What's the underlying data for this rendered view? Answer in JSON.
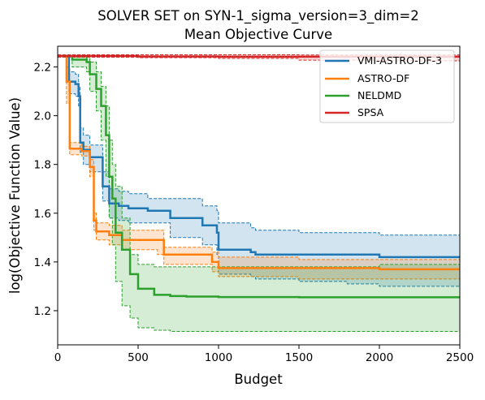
{
  "chart_data": {
    "type": "line",
    "title": "SOLVER SET on SYN-1_sigma_version=3_dim=2",
    "subtitle": "Mean Objective Curve",
    "xlabel": "Budget",
    "ylabel": "log(Objective Function Value)",
    "xlim": [
      0,
      2500
    ],
    "ylim": [
      1.06,
      2.285
    ],
    "xticks": [
      0,
      500,
      1000,
      1500,
      2000,
      2500
    ],
    "yticks": [
      1.2,
      1.4,
      1.6,
      1.8,
      2.0,
      2.2
    ],
    "xtick_labels": [
      "0",
      "500",
      "1000",
      "1500",
      "2000",
      "2500"
    ],
    "ytick_labels": [
      "1.2",
      "1.4",
      "1.6",
      "1.8",
      "2.0",
      "2.2"
    ],
    "grid": false,
    "legend_position": "upper right",
    "step_plot": true,
    "confidence_band": true,
    "series": [
      {
        "name": "VMI-ASTRO-DF-3",
        "color": "#1f77b4",
        "mean": [
          [
            0,
            2.245
          ],
          [
            40,
            2.245
          ],
          [
            70,
            2.14
          ],
          [
            110,
            2.13
          ],
          [
            130,
            2.08
          ],
          [
            140,
            1.89
          ],
          [
            160,
            1.86
          ],
          [
            200,
            1.83
          ],
          [
            270,
            1.83
          ],
          [
            280,
            1.71
          ],
          [
            320,
            1.64
          ],
          [
            380,
            1.63
          ],
          [
            440,
            1.62
          ],
          [
            560,
            1.61
          ],
          [
            700,
            1.58
          ],
          [
            900,
            1.55
          ],
          [
            990,
            1.52
          ],
          [
            1000,
            1.45
          ],
          [
            1200,
            1.44
          ],
          [
            1230,
            1.43
          ],
          [
            1500,
            1.43
          ],
          [
            1800,
            1.43
          ],
          [
            2000,
            1.42
          ],
          [
            2500,
            1.42
          ]
        ],
        "upper": [
          [
            0,
            2.245
          ],
          [
            40,
            2.245
          ],
          [
            70,
            2.18
          ],
          [
            110,
            2.17
          ],
          [
            130,
            2.12
          ],
          [
            140,
            1.95
          ],
          [
            160,
            1.92
          ],
          [
            200,
            1.88
          ],
          [
            270,
            1.88
          ],
          [
            280,
            1.77
          ],
          [
            320,
            1.7
          ],
          [
            380,
            1.69
          ],
          [
            440,
            1.68
          ],
          [
            560,
            1.66
          ],
          [
            700,
            1.66
          ],
          [
            900,
            1.63
          ],
          [
            990,
            1.61
          ],
          [
            1000,
            1.56
          ],
          [
            1200,
            1.54
          ],
          [
            1230,
            1.53
          ],
          [
            1500,
            1.52
          ],
          [
            1800,
            1.52
          ],
          [
            2000,
            1.51
          ],
          [
            2500,
            1.51
          ]
        ],
        "lower": [
          [
            0,
            2.245
          ],
          [
            40,
            2.245
          ],
          [
            70,
            2.09
          ],
          [
            110,
            2.08
          ],
          [
            130,
            2.04
          ],
          [
            140,
            1.85
          ],
          [
            160,
            1.8
          ],
          [
            200,
            1.77
          ],
          [
            270,
            1.77
          ],
          [
            280,
            1.65
          ],
          [
            320,
            1.58
          ],
          [
            380,
            1.57
          ],
          [
            440,
            1.56
          ],
          [
            560,
            1.56
          ],
          [
            700,
            1.5
          ],
          [
            900,
            1.47
          ],
          [
            990,
            1.43
          ],
          [
            1000,
            1.35
          ],
          [
            1200,
            1.34
          ],
          [
            1230,
            1.33
          ],
          [
            1500,
            1.32
          ],
          [
            1800,
            1.31
          ],
          [
            2000,
            1.3
          ],
          [
            2500,
            1.3
          ]
        ]
      },
      {
        "name": "ASTRO-DF",
        "color": "#ff7f0e",
        "mean": [
          [
            0,
            2.245
          ],
          [
            40,
            2.245
          ],
          [
            55,
            2.14
          ],
          [
            75,
            1.865
          ],
          [
            150,
            1.855
          ],
          [
            200,
            1.79
          ],
          [
            225,
            1.57
          ],
          [
            240,
            1.525
          ],
          [
            320,
            1.51
          ],
          [
            400,
            1.49
          ],
          [
            620,
            1.49
          ],
          [
            660,
            1.43
          ],
          [
            960,
            1.4
          ],
          [
            1000,
            1.375
          ],
          [
            1500,
            1.375
          ],
          [
            2000,
            1.37
          ],
          [
            2500,
            1.37
          ]
        ],
        "upper": [
          [
            0,
            2.245
          ],
          [
            40,
            2.245
          ],
          [
            55,
            2.2
          ],
          [
            75,
            1.89
          ],
          [
            150,
            1.875
          ],
          [
            200,
            1.82
          ],
          [
            225,
            1.6
          ],
          [
            240,
            1.56
          ],
          [
            320,
            1.55
          ],
          [
            400,
            1.53
          ],
          [
            620,
            1.53
          ],
          [
            660,
            1.46
          ],
          [
            960,
            1.44
          ],
          [
            1000,
            1.42
          ],
          [
            1500,
            1.41
          ],
          [
            2000,
            1.41
          ],
          [
            2500,
            1.41
          ]
        ],
        "lower": [
          [
            0,
            2.245
          ],
          [
            40,
            2.245
          ],
          [
            55,
            2.05
          ],
          [
            75,
            1.84
          ],
          [
            150,
            1.835
          ],
          [
            200,
            1.75
          ],
          [
            225,
            1.53
          ],
          [
            240,
            1.49
          ],
          [
            320,
            1.47
          ],
          [
            400,
            1.45
          ],
          [
            620,
            1.43
          ],
          [
            660,
            1.39
          ],
          [
            960,
            1.36
          ],
          [
            1000,
            1.34
          ],
          [
            1500,
            1.33
          ],
          [
            2000,
            1.33
          ],
          [
            2500,
            1.33
          ]
        ]
      },
      {
        "name": "NELDMD",
        "color": "#2ca02c",
        "mean": [
          [
            0,
            2.245
          ],
          [
            60,
            2.245
          ],
          [
            90,
            2.23
          ],
          [
            180,
            2.22
          ],
          [
            200,
            2.17
          ],
          [
            240,
            2.11
          ],
          [
            270,
            2.04
          ],
          [
            300,
            1.92
          ],
          [
            320,
            1.75
          ],
          [
            340,
            1.66
          ],
          [
            360,
            1.52
          ],
          [
            400,
            1.45
          ],
          [
            450,
            1.35
          ],
          [
            500,
            1.29
          ],
          [
            600,
            1.265
          ],
          [
            700,
            1.26
          ],
          [
            800,
            1.258
          ],
          [
            1000,
            1.256
          ],
          [
            1500,
            1.255
          ],
          [
            2000,
            1.255
          ],
          [
            2500,
            1.255
          ]
        ],
        "upper": [
          [
            0,
            2.245
          ],
          [
            60,
            2.245
          ],
          [
            90,
            2.24
          ],
          [
            180,
            2.235
          ],
          [
            200,
            2.22
          ],
          [
            240,
            2.18
          ],
          [
            270,
            2.12
          ],
          [
            300,
            2.04
          ],
          [
            320,
            1.9
          ],
          [
            340,
            1.8
          ],
          [
            360,
            1.71
          ],
          [
            400,
            1.58
          ],
          [
            450,
            1.43
          ],
          [
            500,
            1.39
          ],
          [
            600,
            1.38
          ],
          [
            700,
            1.38
          ],
          [
            800,
            1.38
          ],
          [
            1000,
            1.38
          ],
          [
            1500,
            1.38
          ],
          [
            2000,
            1.39
          ],
          [
            2500,
            1.39
          ]
        ],
        "lower": [
          [
            0,
            2.245
          ],
          [
            60,
            2.245
          ],
          [
            90,
            2.2
          ],
          [
            180,
            2.18
          ],
          [
            200,
            2.1
          ],
          [
            240,
            2.02
          ],
          [
            270,
            1.9
          ],
          [
            300,
            1.75
          ],
          [
            320,
            1.58
          ],
          [
            340,
            1.47
          ],
          [
            360,
            1.32
          ],
          [
            400,
            1.22
          ],
          [
            450,
            1.17
          ],
          [
            500,
            1.13
          ],
          [
            600,
            1.12
          ],
          [
            700,
            1.115
          ],
          [
            800,
            1.115
          ],
          [
            1000,
            1.115
          ],
          [
            1500,
            1.115
          ],
          [
            2000,
            1.115
          ],
          [
            2500,
            1.115
          ]
        ]
      },
      {
        "name": "SPSA",
        "color": "#d62728",
        "mean": [
          [
            0,
            2.245
          ],
          [
            500,
            2.243
          ],
          [
            1000,
            2.242
          ],
          [
            1500,
            2.242
          ],
          [
            2000,
            2.242
          ],
          [
            2500,
            2.241
          ]
        ],
        "upper": [
          [
            0,
            2.25
          ],
          [
            500,
            2.25
          ],
          [
            1000,
            2.25
          ],
          [
            1500,
            2.249
          ],
          [
            2000,
            2.249
          ],
          [
            2500,
            2.249
          ]
        ],
        "lower": [
          [
            0,
            2.24
          ],
          [
            500,
            2.238
          ],
          [
            1000,
            2.235
          ],
          [
            1500,
            2.228
          ],
          [
            2000,
            2.225
          ],
          [
            2500,
            2.222
          ]
        ]
      }
    ]
  }
}
